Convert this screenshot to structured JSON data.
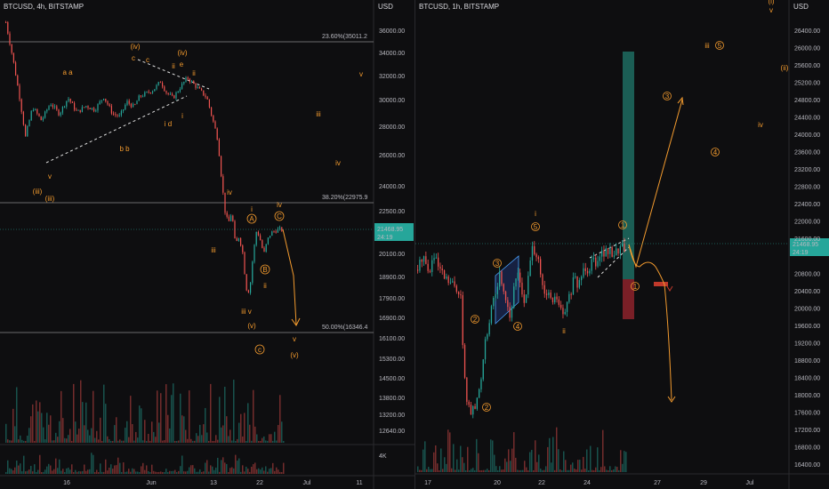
{
  "colors": {
    "background": "#0e0e10",
    "up_candle": "#26a69a",
    "down_candle": "#ef5350",
    "wave_label": "#f29a2e",
    "price_tag": "#26a69a",
    "fib_line": "#8a8a8a",
    "projection": "#f29a2e",
    "target_box": "#1b5e55",
    "stop_box": "#7a1f27"
  },
  "panes": [
    {
      "id": "left",
      "title": "BTCUSD, 4h, BITSTAMP",
      "price_scale_label": "USD",
      "y_ticks": [
        "36000.00",
        "34000.00",
        "32000.00",
        "30000.00",
        "28000.00",
        "26000.00",
        "24000.00",
        "22500.00",
        "20100.00",
        "18900.00",
        "17900.00",
        "16900.00",
        "16100.00",
        "15300.00",
        "14500.00",
        "13800.00",
        "13200.00",
        "12640.00"
      ],
      "volume_label": "4K",
      "x_ticks": [
        "16",
        "Jun",
        "13",
        "22",
        "Jul",
        "11"
      ],
      "current_price": "21468.95",
      "countdown": "24:19",
      "fib_levels": [
        {
          "label": "23.60%(35011.2",
          "price": 35011.2
        },
        {
          "label": "38.20%(22975.9",
          "price": 22975.9
        },
        {
          "label": "50.00%(16346.4",
          "price": 16346.4
        }
      ],
      "wave_labels": [
        {
          "text": "(iv)",
          "style": "orange"
        },
        {
          "text": "c",
          "style": "orange"
        },
        {
          "text": "c",
          "style": "orange"
        },
        {
          "text": "(iv)",
          "style": "orange"
        },
        {
          "text": "ii",
          "style": "orange"
        },
        {
          "text": "e",
          "style": "orange"
        },
        {
          "text": "ii",
          "style": "orange"
        },
        {
          "text": "a a",
          "style": "orange"
        },
        {
          "text": "i d",
          "style": "orange"
        },
        {
          "text": "i",
          "style": "orange"
        },
        {
          "text": "b b",
          "style": "orange"
        },
        {
          "text": "v",
          "style": "orange"
        },
        {
          "text": "(iii)",
          "style": "orange"
        },
        {
          "text": "(iii)",
          "style": "orange"
        },
        {
          "text": "iv",
          "style": "orange"
        },
        {
          "text": "iii",
          "style": "orange"
        },
        {
          "text": "i",
          "style": "orange"
        },
        {
          "text": "A",
          "style": "circled"
        },
        {
          "text": "iv",
          "style": "orange"
        },
        {
          "text": "C",
          "style": "circled"
        },
        {
          "text": "B",
          "style": "circled"
        },
        {
          "text": "ii",
          "style": "orange"
        },
        {
          "text": "iii v",
          "style": "orange"
        },
        {
          "text": "(v)",
          "style": "orange"
        },
        {
          "text": "c",
          "style": "circled"
        },
        {
          "text": "v",
          "style": "orange"
        },
        {
          "text": "(v)",
          "style": "orange"
        },
        {
          "text": "v",
          "style": "orange"
        },
        {
          "text": "iii",
          "style": "orange"
        },
        {
          "text": "iv",
          "style": "orange"
        }
      ]
    },
    {
      "id": "right",
      "title": "BTCUSD, 1h, BITSTAMP",
      "price_scale_label": "USD",
      "y_ticks": [
        "26400.00",
        "26000.00",
        "25600.00",
        "25200.00",
        "24800.00",
        "24400.00",
        "24000.00",
        "23600.00",
        "23200.00",
        "22800.00",
        "22400.00",
        "22000.00",
        "21600.00",
        "20800.00",
        "20400.00",
        "20000.00",
        "19600.00",
        "19200.00",
        "18800.00",
        "18400.00",
        "18000.00",
        "17600.00",
        "17200.00",
        "16800.00",
        "16400.00"
      ],
      "x_ticks": [
        "17",
        "20",
        "22",
        "24",
        "27",
        "29",
        "Jul"
      ],
      "current_price": "21468.95",
      "countdown": "24:19",
      "wave_labels": [
        {
          "text": "(i)",
          "style": "orange"
        },
        {
          "text": "v",
          "style": "orange"
        },
        {
          "text": "iii",
          "style": "orange"
        },
        {
          "text": "5",
          "style": "circled"
        },
        {
          "text": "(ii)",
          "style": "orange"
        },
        {
          "text": "3",
          "style": "circled"
        },
        {
          "text": "iv",
          "style": "orange"
        },
        {
          "text": "4",
          "style": "circled"
        },
        {
          "text": "i",
          "style": "orange"
        },
        {
          "text": "5",
          "style": "circled"
        },
        {
          "text": "3",
          "style": "circled"
        },
        {
          "text": "1",
          "style": "circled"
        },
        {
          "text": "1",
          "style": "circled"
        },
        {
          "text": "4",
          "style": "circled"
        },
        {
          "text": "2",
          "style": "circled"
        },
        {
          "text": "ii",
          "style": "orange"
        },
        {
          "text": "2",
          "style": "circled"
        }
      ]
    }
  ],
  "chart_data": [
    {
      "type": "candlestick",
      "title": "BTCUSD, 4h, BITSTAMP",
      "x": [
        "16",
        "Jun",
        "13",
        "22",
        "Jul",
        "11"
      ],
      "ylabel": "USD",
      "ylim": [
        12300,
        37500
      ],
      "last_price": 21468.95,
      "series": [
        {
          "name": "BTCUSD",
          "close_path": [
            [
              0,
              36800
            ],
            [
              8,
              33500
            ],
            [
              16,
              30000
            ],
            [
              22,
              27300
            ],
            [
              30,
              29500
            ],
            [
              40,
              28500
            ],
            [
              50,
              29800
            ],
            [
              60,
              29000
            ],
            [
              70,
              30200
            ],
            [
              80,
              29100
            ],
            [
              90,
              29600
            ],
            [
              100,
              29300
            ],
            [
              110,
              30300
            ],
            [
              120,
              29000
            ],
            [
              128,
              28800
            ],
            [
              136,
              29900
            ],
            [
              144,
              29500
            ],
            [
              150,
              30300
            ],
            [
              158,
              30600
            ],
            [
              166,
              30900
            ],
            [
              174,
              31600
            ],
            [
              180,
              30700
            ],
            [
              188,
              30200
            ],
            [
              196,
              31100
            ],
            [
              204,
              31900
            ],
            [
              212,
              31300
            ],
            [
              220,
              30700
            ],
            [
              226,
              30200
            ],
            [
              232,
              28700
            ],
            [
              238,
              27200
            ],
            [
              242,
              24800
            ],
            [
              246,
              22600
            ],
            [
              250,
              21800
            ],
            [
              254,
              22500
            ],
            [
              258,
              20600
            ],
            [
              262,
              21100
            ],
            [
              266,
              20300
            ],
            [
              270,
              18400
            ],
            [
              274,
              18200
            ],
            [
              278,
              20100
            ],
            [
              282,
              21500
            ],
            [
              286,
              20900
            ],
            [
              290,
              20100
            ],
            [
              294,
              20900
            ],
            [
              298,
              21300
            ],
            [
              302,
              21400
            ],
            [
              306,
              21500
            ],
            [
              312,
              21468.95
            ]
          ]
        }
      ]
    },
    {
      "type": "candlestick",
      "title": "BTCUSD, 1h, BITSTAMP",
      "x": [
        "17",
        "20",
        "22",
        "24",
        "27",
        "29",
        "Jul"
      ],
      "ylabel": "USD",
      "ylim": [
        16200,
        26800
      ],
      "last_price": 21468.95,
      "series": [
        {
          "name": "BTCUSD",
          "close_path": [
            [
              0,
              20900
            ],
            [
              6,
              21300
            ],
            [
              12,
              20800
            ],
            [
              18,
              21200
            ],
            [
              24,
              20900
            ],
            [
              30,
              20700
            ],
            [
              36,
              20600
            ],
            [
              42,
              20500
            ],
            [
              48,
              20400
            ],
            [
              52,
              18500
            ],
            [
              56,
              17800
            ],
            [
              60,
              17600
            ],
            [
              64,
              17700
            ],
            [
              68,
              18000
            ],
            [
              72,
              18500
            ],
            [
              76,
              19400
            ],
            [
              80,
              19600
            ],
            [
              84,
              20100
            ],
            [
              88,
              20400
            ],
            [
              92,
              20800
            ],
            [
              96,
              20500
            ],
            [
              100,
              20200
            ],
            [
              104,
              19800
            ],
            [
              108,
              20400
            ],
            [
              112,
              20900
            ],
            [
              116,
              20600
            ],
            [
              120,
              20000
            ],
            [
              124,
              20700
            ],
            [
              128,
              21300
            ],
            [
              132,
              21400
            ],
            [
              136,
              21000
            ],
            [
              140,
              20500
            ],
            [
              144,
              20200
            ],
            [
              148,
              20400
            ],
            [
              152,
              20100
            ],
            [
              156,
              20300
            ],
            [
              160,
              20000
            ],
            [
              164,
              19800
            ],
            [
              168,
              20100
            ],
            [
              172,
              20400
            ],
            [
              176,
              20700
            ],
            [
              180,
              20500
            ],
            [
              184,
              20800
            ],
            [
              188,
              21000
            ],
            [
              192,
              20900
            ],
            [
              196,
              21200
            ],
            [
              200,
              21100
            ],
            [
              204,
              21300
            ],
            [
              210,
              21300
            ],
            [
              216,
              21300
            ],
            [
              222,
              21300
            ],
            [
              226,
              21400
            ],
            [
              234,
              21468.95
            ]
          ]
        }
      ]
    }
  ]
}
